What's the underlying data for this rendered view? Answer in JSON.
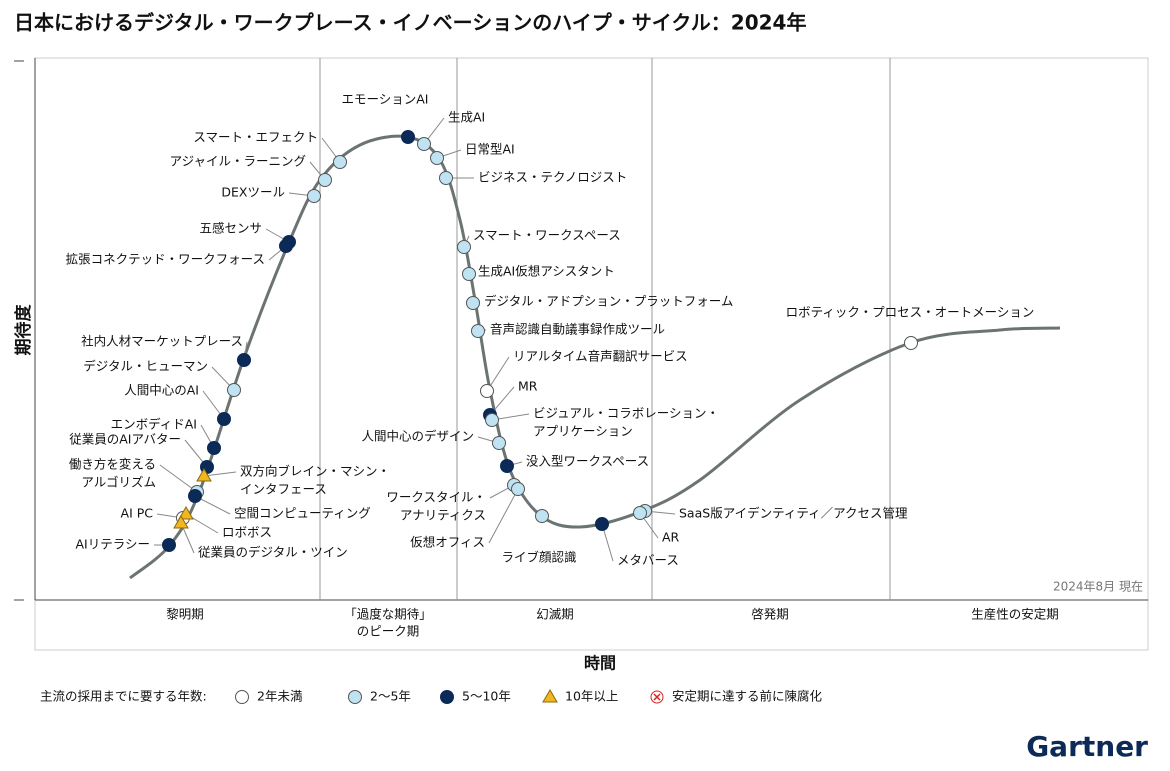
{
  "title": "日本におけるデジタル・ワークプレース・イノベーションのハイプ・サイクル：2024年",
  "axes": {
    "y_label": "期待度",
    "x_label": "時間"
  },
  "phases": [
    {
      "lines": [
        "黎明期"
      ]
    },
    {
      "lines": [
        "「過度な期待」",
        "のピーク期"
      ]
    },
    {
      "lines": [
        "幻滅期"
      ]
    },
    {
      "lines": [
        "啓発期"
      ]
    },
    {
      "lines": [
        "生産性の安定期"
      ]
    }
  ],
  "as_of": "2024年8月 現在",
  "items": [
    {
      "lines": [
        "エモーションAI"
      ]
    },
    {
      "lines": [
        "生成AI"
      ]
    },
    {
      "lines": [
        "日常型AI"
      ]
    },
    {
      "lines": [
        "ビジネス・テクノロジスト"
      ]
    },
    {
      "lines": [
        "スマート・エフェクト"
      ]
    },
    {
      "lines": [
        "アジャイル・ラーニング"
      ]
    },
    {
      "lines": [
        "DEXツール"
      ]
    },
    {
      "lines": [
        "五感センサ"
      ]
    },
    {
      "lines": [
        "拡張コネクテッド・ワークフォース"
      ]
    },
    {
      "lines": [
        "社内人材マーケットプレース"
      ]
    },
    {
      "lines": [
        "デジタル・ヒューマン"
      ]
    },
    {
      "lines": [
        "人間中心のAI"
      ]
    },
    {
      "lines": [
        "エンボディドAI"
      ]
    },
    {
      "lines": [
        "従業員のAIアバター"
      ]
    },
    {
      "lines": [
        "働き方を変える",
        "アルゴリズム"
      ]
    },
    {
      "lines": [
        "双方向ブレイン・マシン・",
        "インタフェース"
      ]
    },
    {
      "lines": [
        "空間コンピューティング"
      ]
    },
    {
      "lines": [
        "AI PC"
      ]
    },
    {
      "lines": [
        "ロボボス"
      ]
    },
    {
      "lines": [
        "従業員のデジタル・ツイン"
      ]
    },
    {
      "lines": [
        "AIリテラシー"
      ]
    },
    {
      "lines": [
        "スマート・ワークスペース"
      ]
    },
    {
      "lines": [
        "生成AI仮想アシスタント"
      ]
    },
    {
      "lines": [
        "デジタル・アドプション・プラットフォーム"
      ]
    },
    {
      "lines": [
        "音声認識自動議事録作成ツール"
      ]
    },
    {
      "lines": [
        "リアルタイム音声翻訳サービス"
      ]
    },
    {
      "lines": [
        "MR"
      ]
    },
    {
      "lines": [
        "ビジュアル・コラボレーション・",
        "アプリケーション"
      ]
    },
    {
      "lines": [
        "人間中心のデザイン"
      ]
    },
    {
      "lines": [
        "没入型ワークスペース"
      ]
    },
    {
      "lines": [
        "ワークスタイル・",
        "アナリティクス"
      ]
    },
    {
      "lines": [
        "仮想オフィス"
      ]
    },
    {
      "lines": [
        "ライブ顔認識"
      ]
    },
    {
      "lines": [
        "メタバース"
      ]
    },
    {
      "lines": [
        "SaaS版アイデンティティ／アクセス管理"
      ]
    },
    {
      "lines": [
        "AR"
      ]
    },
    {
      "lines": [
        "ロボティック・プロセス・オートメーション"
      ]
    }
  ],
  "legend": {
    "title": "主流の採用までに要する年数:",
    "entries": [
      "2年未満",
      "2〜5年",
      "5〜10年",
      "10年以上",
      "安定期に達する前に陳腐化"
    ]
  },
  "brand": "Gartner"
}
